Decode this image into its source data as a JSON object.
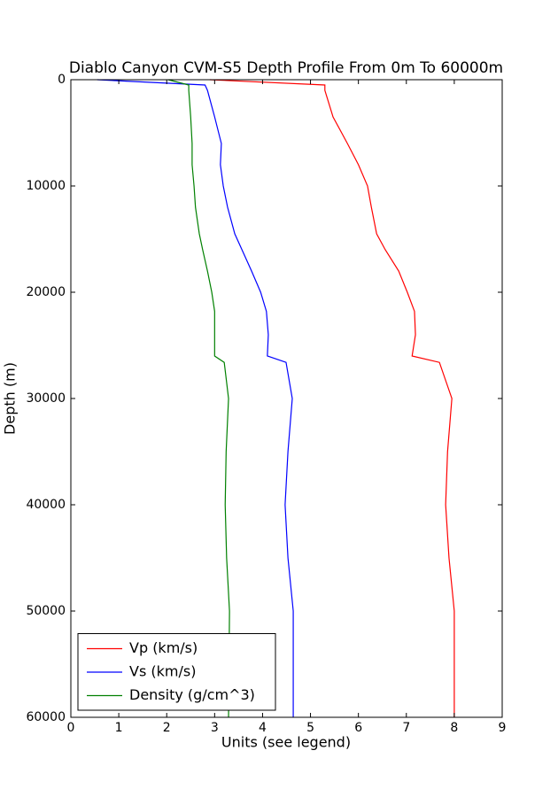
{
  "chart_data": {
    "type": "line",
    "title": "Diablo Canyon CVM-S5 Depth Profile From 0m To 60000m",
    "xlabel": "Units (see legend)",
    "ylabel": "Depth (m)",
    "y": [
      0,
      500,
      1000,
      3500,
      6000,
      8000,
      10000,
      12000,
      14500,
      16000,
      18000,
      20000,
      21800,
      24000,
      26000,
      26600,
      30000,
      35000,
      40000,
      45000,
      50000,
      60000
    ],
    "series": [
      {
        "name": "Vp (km/s)",
        "color": "#ff0000",
        "values": [
          2.9,
          5.3,
          5.3,
          5.47,
          5.77,
          6.0,
          6.19,
          6.27,
          6.38,
          6.56,
          6.84,
          7.02,
          7.17,
          7.19,
          7.12,
          7.69,
          7.95,
          7.86,
          7.82,
          7.89,
          8.0,
          8.0
        ]
      },
      {
        "name": "Vs (km/s)",
        "color": "#0000ff",
        "values": [
          0.55,
          2.8,
          2.85,
          3.0,
          3.14,
          3.12,
          3.18,
          3.27,
          3.42,
          3.57,
          3.77,
          3.96,
          4.08,
          4.12,
          4.1,
          4.49,
          4.62,
          4.53,
          4.47,
          4.53,
          4.64,
          4.64
        ]
      },
      {
        "name": "Density (g/cm^3)",
        "color": "#008000",
        "values": [
          2.03,
          2.46,
          2.46,
          2.5,
          2.53,
          2.53,
          2.57,
          2.6,
          2.68,
          2.75,
          2.85,
          2.94,
          3.0,
          3.0,
          3.0,
          3.2,
          3.29,
          3.24,
          3.22,
          3.25,
          3.31,
          3.29
        ]
      }
    ],
    "xlim": [
      0,
      9
    ],
    "xticks": [
      0,
      1,
      2,
      3,
      4,
      5,
      6,
      7,
      8,
      9
    ],
    "ylim": [
      0,
      60000
    ],
    "yticks": [
      0,
      10000,
      20000,
      30000,
      40000,
      50000,
      60000
    ],
    "y_inverted": true,
    "legend": "lower left"
  }
}
